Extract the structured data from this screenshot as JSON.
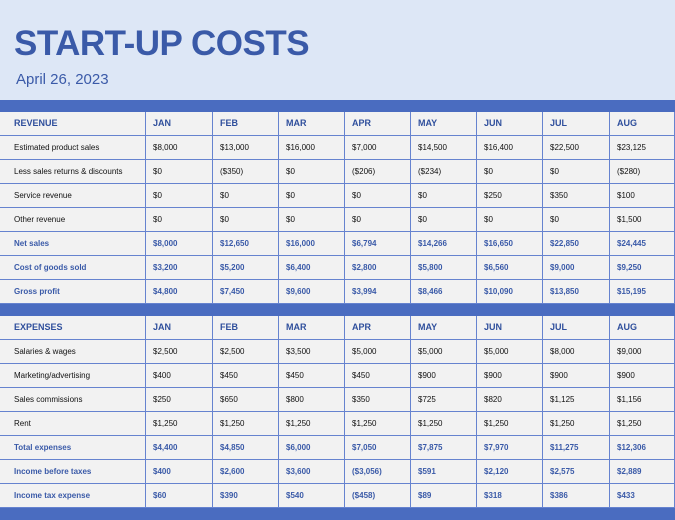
{
  "header": {
    "title": "START-UP COSTS",
    "date": "April 26, 2023"
  },
  "tables": [
    {
      "columns": [
        "REVENUE",
        "JAN",
        "FEB",
        "MAR",
        "APR",
        "MAY",
        "JUN",
        "JUL",
        "AUG"
      ],
      "rows": [
        {
          "label": "Estimated product sales",
          "values": [
            "$8,000",
            "$13,000",
            "$16,000",
            "$7,000",
            "$14,500",
            "$16,400",
            "$22,500",
            "$23,125"
          ]
        },
        {
          "label": "Less sales returns & discounts",
          "values": [
            "$0",
            "($350)",
            "$0",
            "($206)",
            "($234)",
            "$0",
            "$0",
            "($280)"
          ]
        },
        {
          "label": "Service revenue",
          "values": [
            "$0",
            "$0",
            "$0",
            "$0",
            "$0",
            "$250",
            "$350",
            "$100"
          ]
        },
        {
          "label": "Other revenue",
          "values": [
            "$0",
            "$0",
            "$0",
            "$0",
            "$0",
            "$0",
            "$0",
            "$1,500"
          ]
        }
      ],
      "summary_rows": [
        {
          "label": "Net sales",
          "values": [
            "$8,000",
            "$12,650",
            "$16,000",
            "$6,794",
            "$14,266",
            "$16,650",
            "$22,850",
            "$24,445"
          ]
        },
        {
          "label": "Cost of goods sold",
          "values": [
            "$3,200",
            "$5,200",
            "$6,400",
            "$2,800",
            "$5,800",
            "$6,560",
            "$9,000",
            "$9,250"
          ]
        },
        {
          "label": "Gross profit",
          "values": [
            "$4,800",
            "$7,450",
            "$9,600",
            "$3,994",
            "$8,466",
            "$10,090",
            "$13,850",
            "$15,195"
          ]
        }
      ]
    },
    {
      "columns": [
        "EXPENSES",
        "JAN",
        "FEB",
        "MAR",
        "APR",
        "MAY",
        "JUN",
        "JUL",
        "AUG"
      ],
      "rows": [
        {
          "label": "Salaries & wages",
          "values": [
            "$2,500",
            "$2,500",
            "$3,500",
            "$5,000",
            "$5,000",
            "$5,000",
            "$8,000",
            "$9,000"
          ]
        },
        {
          "label": "Marketing/advertising",
          "values": [
            "$400",
            "$450",
            "$450",
            "$450",
            "$900",
            "$900",
            "$900",
            "$900"
          ]
        },
        {
          "label": "Sales commissions",
          "values": [
            "$250",
            "$650",
            "$800",
            "$350",
            "$725",
            "$820",
            "$1,125",
            "$1,156"
          ]
        },
        {
          "label": "Rent",
          "values": [
            "$1,250",
            "$1,250",
            "$1,250",
            "$1,250",
            "$1,250",
            "$1,250",
            "$1,250",
            "$1,250"
          ]
        }
      ],
      "summary_rows": [
        {
          "label": "Total expenses",
          "values": [
            "$4,400",
            "$4,850",
            "$6,000",
            "$7,050",
            "$7,875",
            "$7,970",
            "$11,275",
            "$12,306"
          ]
        },
        {
          "label": "Income before taxes",
          "values": [
            "$400",
            "$2,600",
            "$3,600",
            "($3,056)",
            "$591",
            "$2,120",
            "$2,575",
            "$2,889"
          ]
        },
        {
          "label": "Income tax expense",
          "values": [
            "$60",
            "$390",
            "$540",
            "($458)",
            "$89",
            "$318",
            "$386",
            "$433"
          ]
        }
      ]
    }
  ]
}
